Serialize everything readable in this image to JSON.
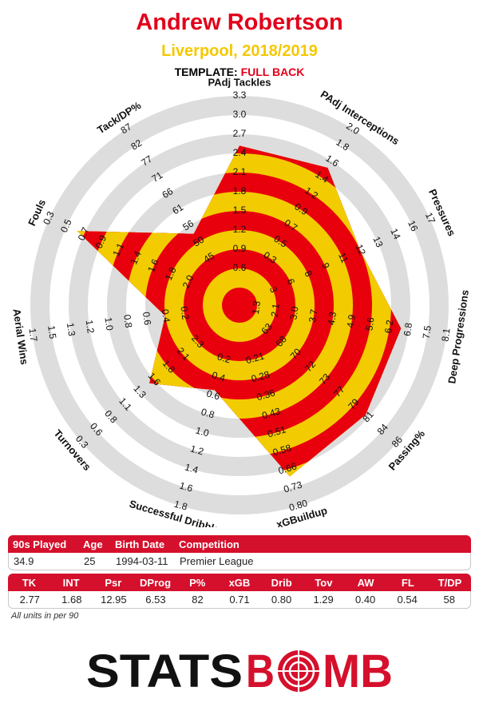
{
  "header": {
    "player": "Andrew Robertson",
    "club_season": "Liverpool, 2018/2019",
    "template_label": "TEMPLATE: ",
    "template_value": "FULL BACK"
  },
  "chart_data": {
    "type": "radar",
    "rings": 10,
    "colors": {
      "fill_a": "#e8000c",
      "fill_b": "#f2cc00",
      "ring_bg": "#dddddd"
    },
    "axes": [
      {
        "label": "PAdj Tackles",
        "ticks": [
          "0.6",
          "0.9",
          "1.2",
          "1.5",
          "1.8",
          "2.1",
          "2.4",
          "2.7",
          "3.0",
          "3.3"
        ],
        "value": 2.77,
        "fraction": 0.74
      },
      {
        "label": "PAdj Interceptions",
        "ticks": [
          "0.3",
          "0.5",
          "0.7",
          "0.9",
          "1.2",
          "1.4",
          "1.6",
          "1.8",
          "2.0"
        ],
        "value": 1.68,
        "fraction": 0.76
      },
      {
        "label": "Pressures",
        "ticks": [
          "3",
          "6",
          "8",
          "9",
          "11",
          "12",
          "13",
          "14",
          "16",
          "17"
        ],
        "value": 12.95,
        "fraction": 0.6
      },
      {
        "label": "Deep Progressions",
        "ticks": [
          "1.3",
          "2.1",
          "3.0",
          "3.7",
          "4.3",
          "4.9",
          "5.6",
          "6.2",
          "6.8",
          "7.5",
          "8.1"
        ],
        "value": 6.53,
        "fraction": 0.76
      },
      {
        "label": "Passing%",
        "ticks": [
          "63",
          "68",
          "70",
          "72",
          "73",
          "77",
          "79",
          "81",
          "84",
          "86"
        ],
        "value": 82,
        "fraction": 0.78
      },
      {
        "label": "xGBuildup",
        "ticks": [
          "0.21",
          "0.28",
          "0.36",
          "0.43",
          "0.51",
          "0.58",
          "0.66",
          "0.73",
          "0.80"
        ],
        "value": 0.71,
        "fraction": 0.84
      },
      {
        "label": "Successful Dribbles",
        "ticks": [
          "0.2",
          "0.4",
          "0.6",
          "0.8",
          "1.0",
          "1.2",
          "1.4",
          "1.6",
          "1.8"
        ],
        "value": 0.8,
        "fraction": 0.37
      },
      {
        "label": "Turnovers",
        "ticks": [
          "2.3",
          "2.1",
          "1.8",
          "1.6",
          "1.3",
          "1.1",
          "0.8",
          "0.6",
          "0.3"
        ],
        "value": 1.29,
        "fraction": 0.53
      },
      {
        "label": "Aerial Wins",
        "ticks": [
          "0.2",
          "0.4",
          "0.6",
          "0.8",
          "1.0",
          "1.2",
          "1.3",
          "1.5",
          "1.7"
        ],
        "value": 0.4,
        "fraction": 0.3
      },
      {
        "label": "Fouls",
        "ticks": [
          "2.0",
          "1.8",
          "1.6",
          "1.4",
          "1.1",
          "0.9",
          "0.7",
          "0.5",
          "0.3"
        ],
        "value": 0.54,
        "fraction": 0.84
      },
      {
        "label": "Tack/DP%",
        "ticks": [
          "45",
          "50",
          "56",
          "61",
          "66",
          "71",
          "77",
          "82",
          "87"
        ],
        "value": 58,
        "fraction": 0.35
      }
    ]
  },
  "info_table": {
    "headers": [
      "90s Played",
      "Age",
      "Birth Date",
      "Competition"
    ],
    "values": [
      "34.9",
      "25",
      "1994-03-11",
      "Premier League"
    ]
  },
  "stats_table": {
    "headers": [
      "TK",
      "INT",
      "Psr",
      "DProg",
      "P%",
      "xGB",
      "Drib",
      "Tov",
      "AW",
      "FL",
      "T/DP"
    ],
    "values": [
      "2.77",
      "1.68",
      "12.95",
      "6.53",
      "82",
      "0.71",
      "0.80",
      "1.29",
      "0.40",
      "0.54",
      "58"
    ]
  },
  "footnote": "All units in per 90",
  "logo": {
    "text_left": "STATS",
    "text_right": "B",
    "text_o": "O",
    "text_end": "MB"
  }
}
